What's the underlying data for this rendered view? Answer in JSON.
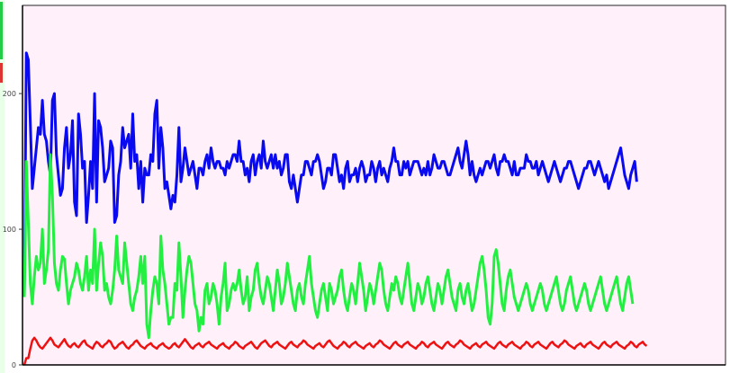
{
  "chart_data": {
    "type": "line",
    "title": "",
    "xlabel": "",
    "ylabel": "",
    "ylim": [
      0,
      265
    ],
    "yticks": [
      {
        "value": 0,
        "label": "0"
      },
      {
        "value": 100,
        "label": "100"
      },
      {
        "value": 200,
        "label": "200"
      }
    ],
    "grid": false,
    "legend": "none",
    "colors": {
      "plot_background": "#fff0fa",
      "axis": "#000000"
    },
    "x_count": 300,
    "series": [
      {
        "color": "#0a0af0",
        "values": [
          50,
          230,
          225,
          178,
          130,
          145,
          160,
          175,
          170,
          195,
          170,
          165,
          150,
          140,
          195,
          200,
          155,
          140,
          125,
          130,
          160,
          175,
          145,
          155,
          180,
          120,
          110,
          185,
          170,
          145,
          150,
          105,
          125,
          150,
          130,
          200,
          120,
          180,
          175,
          160,
          135,
          140,
          145,
          165,
          160,
          105,
          110,
          140,
          150,
          175,
          160,
          165,
          170,
          145,
          185,
          150,
          155,
          130,
          150,
          120,
          145,
          140,
          140,
          155,
          150,
          185,
          195,
          145,
          175,
          160,
          130,
          135,
          125,
          115,
          125,
          120,
          140,
          175,
          135,
          145,
          160,
          150,
          140,
          145,
          150,
          140,
          130,
          145,
          145,
          140,
          150,
          155,
          145,
          160,
          150,
          145,
          150,
          150,
          145,
          145,
          140,
          150,
          145,
          150,
          155,
          155,
          150,
          165,
          150,
          150,
          140,
          145,
          135,
          150,
          155,
          140,
          150,
          155,
          145,
          165,
          150,
          145,
          150,
          155,
          145,
          155,
          145,
          150,
          140,
          145,
          155,
          155,
          135,
          130,
          140,
          130,
          120,
          130,
          140,
          140,
          150,
          150,
          145,
          140,
          150,
          150,
          155,
          150,
          140,
          130,
          135,
          145,
          145,
          140,
          155,
          155,
          145,
          135,
          140,
          130,
          145,
          150,
          135,
          140,
          140,
          145,
          135,
          145,
          150,
          145,
          135,
          140,
          140,
          150,
          145,
          135,
          145,
          150,
          140,
          145,
          140,
          135,
          145,
          150,
          160,
          150,
          150,
          140,
          140,
          150,
          145,
          150,
          140,
          145,
          150,
          150,
          150,
          145,
          140,
          145,
          140,
          150,
          140,
          145,
          155,
          150,
          145,
          145,
          150,
          150,
          145,
          140,
          140,
          145,
          150,
          155,
          160,
          150,
          145,
          155,
          165,
          155,
          140,
          150,
          140,
          135,
          140,
          145,
          140,
          145,
          150,
          150,
          145,
          150,
          155,
          145,
          140,
          150,
          150,
          155,
          150,
          150,
          145,
          140,
          150,
          140,
          140,
          145,
          145,
          145,
          155,
          150,
          150,
          145,
          145,
          150,
          140,
          145,
          150,
          145,
          140,
          135,
          140,
          145,
          150,
          145,
          140,
          135,
          140,
          145,
          145,
          150,
          150,
          145,
          140,
          135,
          130,
          135,
          140,
          145,
          145,
          150,
          150,
          145,
          140,
          145,
          150,
          145,
          140,
          135,
          140,
          130,
          135,
          140,
          145,
          150,
          155,
          160,
          150,
          140,
          135,
          130,
          140,
          145,
          150,
          135
        ]
      },
      {
        "color": "#22f040",
        "values": [
          50,
          150,
          105,
          60,
          45,
          65,
          80,
          70,
          75,
          100,
          60,
          70,
          85,
          155,
          125,
          75,
          60,
          55,
          70,
          80,
          78,
          60,
          45,
          55,
          60,
          65,
          75,
          70,
          60,
          55,
          65,
          80,
          55,
          70,
          60,
          100,
          55,
          75,
          90,
          80,
          55,
          60,
          50,
          45,
          55,
          70,
          95,
          70,
          65,
          60,
          90,
          75,
          60,
          45,
          40,
          50,
          55,
          65,
          80,
          60,
          80,
          30,
          20,
          40,
          55,
          65,
          60,
          45,
          95,
          70,
          60,
          45,
          30,
          35,
          35,
          60,
          55,
          90,
          65,
          35,
          55,
          70,
          80,
          75,
          60,
          45,
          40,
          25,
          35,
          30,
          55,
          60,
          45,
          50,
          60,
          55,
          45,
          30,
          50,
          60,
          75,
          40,
          45,
          55,
          60,
          55,
          60,
          70,
          55,
          45,
          50,
          65,
          40,
          50,
          55,
          70,
          75,
          60,
          50,
          45,
          55,
          65,
          60,
          50,
          40,
          55,
          70,
          60,
          45,
          50,
          60,
          75,
          65,
          55,
          45,
          40,
          55,
          60,
          50,
          45,
          60,
          70,
          80,
          60,
          50,
          40,
          35,
          45,
          55,
          60,
          50,
          40,
          60,
          55,
          45,
          50,
          55,
          65,
          70,
          55,
          45,
          40,
          50,
          60,
          55,
          45,
          60,
          75,
          65,
          55,
          40,
          50,
          60,
          55,
          45,
          55,
          65,
          75,
          70,
          55,
          45,
          40,
          50,
          60,
          55,
          65,
          60,
          50,
          45,
          55,
          65,
          75,
          60,
          45,
          40,
          50,
          60,
          55,
          45,
          50,
          60,
          65,
          55,
          45,
          40,
          50,
          60,
          55,
          45,
          55,
          65,
          70,
          60,
          50,
          45,
          40,
          55,
          60,
          50,
          45,
          55,
          60,
          50,
          40,
          45,
          55,
          65,
          75,
          80,
          70,
          55,
          35,
          30,
          45,
          80,
          85,
          75,
          60,
          45,
          40,
          55,
          65,
          70,
          60,
          50,
          45,
          40,
          45,
          50,
          55,
          60,
          55,
          45,
          40,
          45,
          50,
          55,
          60,
          55,
          45,
          40,
          45,
          50,
          55,
          60,
          65,
          55,
          45,
          40,
          45,
          55,
          60,
          65,
          55,
          45,
          40,
          45,
          50,
          55,
          60,
          55,
          45,
          40,
          45,
          50,
          55,
          60,
          65,
          55,
          45,
          40,
          45,
          50,
          55,
          60,
          65,
          55,
          45,
          40,
          50,
          60,
          65,
          55,
          45
        ]
      },
      {
        "color": "#ee1111",
        "values": [
          0,
          5,
          5,
          12,
          18,
          20,
          18,
          15,
          13,
          12,
          14,
          16,
          18,
          20,
          18,
          15,
          14,
          13,
          15,
          17,
          19,
          16,
          14,
          13,
          15,
          16,
          14,
          13,
          15,
          17,
          18,
          15,
          14,
          13,
          12,
          15,
          17,
          16,
          14,
          13,
          15,
          16,
          18,
          17,
          14,
          12,
          13,
          15,
          16,
          17,
          15,
          13,
          12,
          14,
          15,
          17,
          18,
          16,
          14,
          13,
          12,
          14,
          15,
          16,
          14,
          13,
          12,
          14,
          15,
          16,
          14,
          13,
          12,
          13,
          15,
          16,
          14,
          13,
          15,
          17,
          19,
          17,
          15,
          13,
          12,
          14,
          15,
          16,
          14,
          13,
          15,
          16,
          17,
          15,
          14,
          13,
          12,
          14,
          15,
          16,
          14,
          13,
          12,
          14,
          15,
          17,
          16,
          14,
          13,
          12,
          14,
          15,
          16,
          17,
          15,
          13,
          12,
          14,
          16,
          17,
          18,
          16,
          14,
          13,
          15,
          16,
          17,
          15,
          14,
          13,
          12,
          14,
          16,
          17,
          15,
          14,
          13,
          15,
          16,
          18,
          17,
          15,
          14,
          13,
          12,
          14,
          15,
          16,
          14,
          13,
          15,
          17,
          18,
          16,
          14,
          13,
          12,
          14,
          15,
          17,
          16,
          14,
          13,
          15,
          16,
          17,
          15,
          14,
          13,
          12,
          14,
          15,
          16,
          14,
          13,
          15,
          16,
          18,
          17,
          15,
          14,
          13,
          12,
          14,
          16,
          17,
          15,
          14,
          13,
          15,
          16,
          17,
          15,
          14,
          13,
          12,
          14,
          15,
          17,
          16,
          14,
          13,
          15,
          16,
          17,
          15,
          14,
          13,
          12,
          14,
          16,
          17,
          15,
          14,
          13,
          15,
          16,
          18,
          17,
          15,
          14,
          13,
          12,
          14,
          15,
          16,
          14,
          13,
          15,
          16,
          17,
          15,
          14,
          13,
          12,
          14,
          16,
          17,
          15,
          14,
          13,
          15,
          16,
          17,
          15,
          14,
          13,
          12,
          14,
          15,
          17,
          16,
          14,
          13,
          15,
          16,
          17,
          15,
          14,
          13,
          12,
          14,
          16,
          17,
          15,
          14,
          13,
          15,
          16,
          18,
          17,
          15,
          14,
          13,
          12,
          14,
          15,
          16,
          14,
          13,
          15,
          16,
          17,
          15,
          14,
          13,
          12,
          14,
          16,
          17,
          15,
          14,
          13,
          15,
          16,
          17,
          15,
          14,
          13,
          12,
          14,
          15,
          17,
          16,
          14,
          13,
          15,
          16,
          17,
          15,
          14
        ]
      }
    ]
  }
}
